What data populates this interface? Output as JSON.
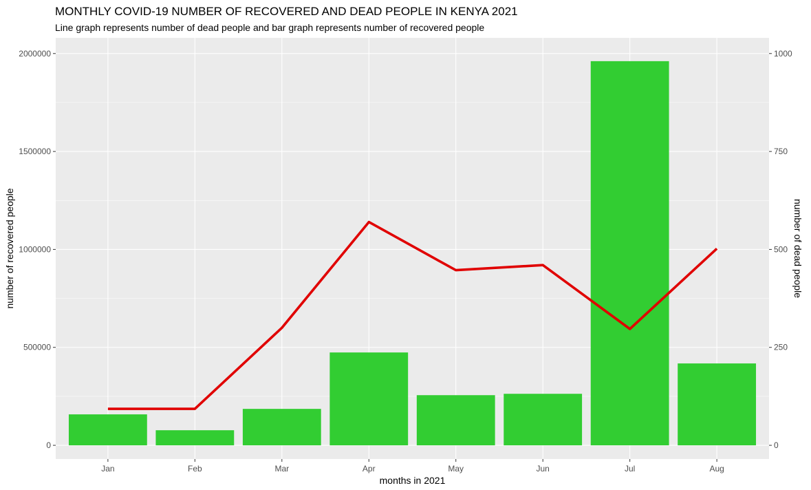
{
  "chart_data": {
    "type": "bar",
    "title": "MONTHLY COVID-19 NUMBER OF RECOVERED AND DEAD PEOPLE IN KENYA 2021",
    "subtitle": "Line graph represents number of dead people and bar graph represents number of recovered people",
    "xlabel": "months in 2021",
    "ylabel": "number of recovered people",
    "ylabel_right": "number of dead people",
    "categories": [
      "Jan",
      "Feb",
      "Mar",
      "Apr",
      "May",
      "Jun",
      "Jul",
      "Aug"
    ],
    "series": [
      {
        "type": "bar",
        "values": [
          158000,
          77000,
          186000,
          474000,
          256000,
          263000,
          1961000,
          418000
        ]
      },
      {
        "type": "line",
        "axis": "right",
        "values": [
          93,
          93,
          300,
          570,
          447,
          460,
          297,
          502
        ]
      }
    ],
    "ylim": [
      -70000,
      2080000
    ],
    "ylim_right": [
      -35,
      1040
    ],
    "yticks": [
      "0",
      "500000",
      "1000000",
      "1500000",
      "2000000"
    ],
    "yticks_right": [
      "0",
      "250",
      "500",
      "750",
      "1000"
    ],
    "grid": true,
    "colors": {
      "bar": "#32cd32",
      "line": "#e00000",
      "panel": "#ebebeb",
      "grid": "#ffffff"
    }
  }
}
